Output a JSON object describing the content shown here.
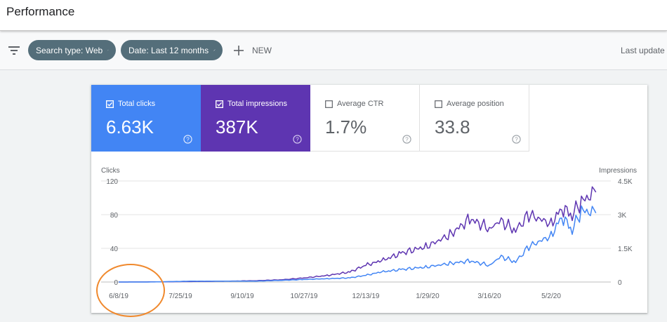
{
  "header": {
    "title": "Performance"
  },
  "toolbar": {
    "filter_icon": "filter-icon",
    "chips": [
      {
        "label": "Search type: Web",
        "icon": "pencil-icon"
      },
      {
        "label": "Date: Last 12 months",
        "icon": "pencil-icon"
      }
    ],
    "new_label": "NEW",
    "last_update_label": "Last update"
  },
  "metrics": [
    {
      "label": "Total clicks",
      "value": "6.63K",
      "checked": true,
      "color": "#4285f4"
    },
    {
      "label": "Total impressions",
      "value": "387K",
      "checked": true,
      "color": "#5e35b1"
    },
    {
      "label": "Average CTR",
      "value": "1.7%",
      "checked": false
    },
    {
      "label": "Average position",
      "value": "33.8",
      "checked": false
    }
  ],
  "chart_data": {
    "type": "line",
    "ylabel_left": "Clicks",
    "ylabel_right": "Impressions",
    "y_left_ticks": [
      "120",
      "80",
      "40",
      "0"
    ],
    "y_right_ticks": [
      "4.5K",
      "3K",
      "1.5K",
      "0"
    ],
    "ylim_left": [
      0,
      120
    ],
    "ylim_right": [
      0,
      4500
    ],
    "x_tick_labels": [
      "6/8/19",
      "7/25/19",
      "9/10/19",
      "10/27/19",
      "12/13/19",
      "1/29/20",
      "3/16/20",
      "5/2/20"
    ],
    "x_range": [
      "6/8/19",
      "6/5/20"
    ],
    "grid": true,
    "series": [
      {
        "name": "Clicks",
        "axis": "left",
        "color": "#4285f4",
        "x": [
          "6/8/19",
          "7/1/19",
          "8/1/19",
          "9/1/19",
          "9/20/19",
          "10/10/19",
          "10/27/19",
          "11/15/19",
          "12/1/19",
          "12/13/19",
          "12/25/19",
          "1/10/20",
          "1/29/20",
          "2/15/20",
          "3/1/20",
          "3/16/20",
          "3/25/20",
          "4/5/20",
          "4/15/20",
          "5/2/20",
          "5/10/20",
          "5/18/20",
          "5/25/20",
          "6/5/20"
        ],
        "values": [
          0,
          0,
          1,
          1,
          1,
          2,
          3,
          4,
          5,
          8,
          12,
          15,
          18,
          22,
          25,
          20,
          30,
          24,
          42,
          55,
          78,
          62,
          85,
          82
        ]
      },
      {
        "name": "Impressions",
        "axis": "right",
        "color": "#5e35b1",
        "x": [
          "6/8/19",
          "7/1/19",
          "8/1/19",
          "9/1/19",
          "9/20/19",
          "10/10/19",
          "10/27/19",
          "11/15/19",
          "12/1/19",
          "12/13/19",
          "12/25/19",
          "1/10/20",
          "1/29/20",
          "2/15/20",
          "3/1/20",
          "3/16/20",
          "3/25/20",
          "4/5/20",
          "4/15/20",
          "5/2/20",
          "5/10/20",
          "5/18/20",
          "5/25/20",
          "6/5/20"
        ],
        "values": [
          0,
          5,
          20,
          40,
          60,
          100,
          180,
          300,
          450,
          750,
          950,
          1300,
          1600,
          2100,
          2800,
          2400,
          2700,
          2300,
          3000,
          2600,
          3300,
          3000,
          3600,
          4000
        ]
      }
    ]
  }
}
